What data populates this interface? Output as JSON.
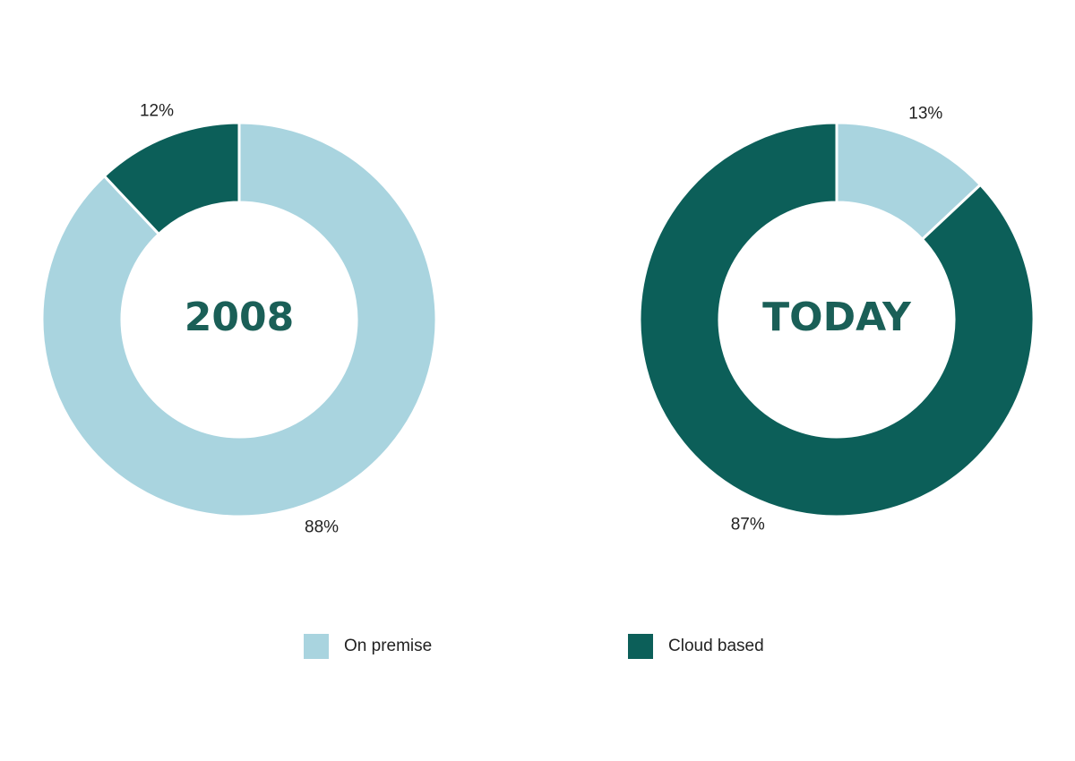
{
  "legend": {
    "categories": [
      "On premise",
      "Cloud based"
    ],
    "colors": [
      "#a9d4df",
      "#0c5f59"
    ]
  },
  "chart_data": [
    {
      "type": "donut",
      "center_label": "2008",
      "values": [
        88,
        12
      ],
      "value_labels": [
        "88%",
        "12%"
      ]
    },
    {
      "type": "donut",
      "center_label": "TODAY",
      "values": [
        13,
        87
      ],
      "value_labels": [
        "13%",
        "87%"
      ]
    }
  ]
}
